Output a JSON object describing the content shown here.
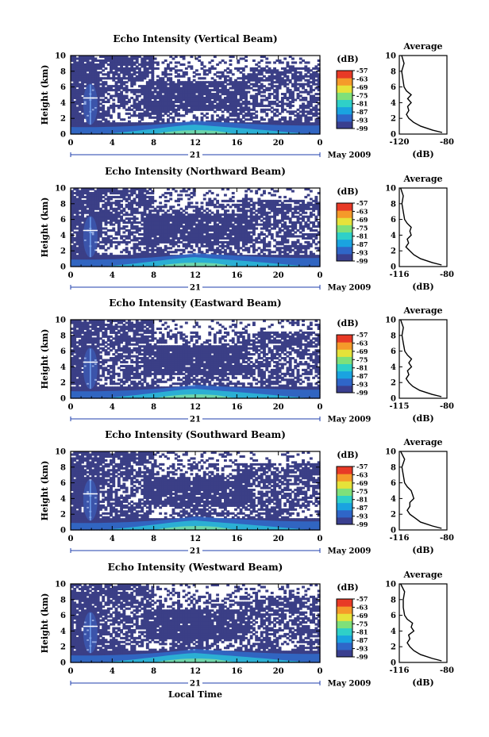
{
  "figure": {
    "shared_xlabel": "Local Time",
    "date_label": "May 2009",
    "day_label": "21",
    "colorbar_unit": "(dB)",
    "average_title": "Average",
    "average_xlabel": "(dB)"
  },
  "colorbar": {
    "ticks": [
      "-57",
      "-63",
      "-69",
      "-75",
      "-81",
      "-87",
      "-93",
      "-99"
    ],
    "colors": [
      "#3a3f8f",
      "#2f66c8",
      "#1aa3e0",
      "#2fd0c8",
      "#7fe07a",
      "#e6e23a",
      "#f59a2a",
      "#e83a26"
    ]
  },
  "chart_data": [
    {
      "type": "heatmap",
      "title": "Echo Intensity (Vertical Beam)",
      "ylabel": "Height (km)",
      "xlim": [
        0,
        24
      ],
      "ylim": [
        0,
        10
      ],
      "x_ticks": [
        "0",
        "4",
        "8",
        "12",
        "16",
        "20",
        "0"
      ],
      "y_ticks": [
        "0",
        "2",
        "4",
        "6",
        "8",
        "10"
      ],
      "colorbar_range_dB": [
        -99,
        -57
      ],
      "average_profile": {
        "type": "line",
        "xlim": [
          -120,
          -80
        ],
        "x_ticks": [
          "-120",
          "-80"
        ],
        "y_ticks": [
          "0",
          "2",
          "4",
          "6",
          "8",
          "10"
        ],
        "heights_km": [
          0.2,
          0.5,
          1.0,
          1.5,
          2.0,
          2.5,
          3.0,
          3.5,
          4.0,
          4.5,
          5.0,
          5.5,
          6.0,
          7.0,
          8.0,
          9.0,
          10.0
        ],
        "values_dB": [
          -84,
          -92,
          -102,
          -108,
          -112,
          -114,
          -112,
          -113,
          -110,
          -113,
          -110,
          -114,
          -116,
          -117,
          -118,
          -116,
          -118
        ]
      }
    },
    {
      "type": "heatmap",
      "title": "Echo Intensity (Northward Beam)",
      "ylabel": "Height (km)",
      "xlim": [
        0,
        24
      ],
      "ylim": [
        0,
        10
      ],
      "x_ticks": [
        "0",
        "4",
        "8",
        "12",
        "16",
        "20",
        "0"
      ],
      "y_ticks": [
        "0",
        "2",
        "4",
        "6",
        "8",
        "10"
      ],
      "colorbar_range_dB": [
        -99,
        -57
      ],
      "average_profile": {
        "type": "line",
        "xlim": [
          -116,
          -80
        ],
        "x_ticks": [
          "-116",
          "-80"
        ],
        "y_ticks": [
          "0",
          "2",
          "4",
          "6",
          "8",
          "10"
        ],
        "heights_km": [
          0.2,
          0.5,
          1.0,
          1.5,
          2.0,
          2.5,
          3.0,
          3.5,
          4.0,
          4.5,
          5.0,
          5.5,
          6.0,
          7.0,
          8.0,
          9.0,
          10.0
        ],
        "values_dB": [
          -84,
          -91,
          -100,
          -105,
          -108,
          -111,
          -109,
          -110,
          -107,
          -108,
          -107,
          -110,
          -112,
          -113,
          -114,
          -113,
          -115
        ]
      }
    },
    {
      "type": "heatmap",
      "title": "Echo Intensity (Eastward Beam)",
      "ylabel": "Height (km)",
      "xlim": [
        0,
        24
      ],
      "ylim": [
        0,
        10
      ],
      "x_ticks": [
        "0",
        "4",
        "8",
        "12",
        "16",
        "20",
        "0"
      ],
      "y_ticks": [
        "0",
        "2",
        "4",
        "6",
        "8",
        "10"
      ],
      "colorbar_range_dB": [
        -99,
        -57
      ],
      "average_profile": {
        "type": "line",
        "xlim": [
          -115,
          -80
        ],
        "x_ticks": [
          "-115",
          "-80"
        ],
        "y_ticks": [
          "0",
          "2",
          "4",
          "6",
          "8",
          "10"
        ],
        "heights_km": [
          0.2,
          0.5,
          1.0,
          1.5,
          2.0,
          2.5,
          3.0,
          3.5,
          4.0,
          4.5,
          5.0,
          5.5,
          6.0,
          7.0,
          8.0,
          9.0,
          10.0
        ],
        "values_dB": [
          -84,
          -91,
          -100,
          -105,
          -108,
          -110,
          -108,
          -109,
          -106,
          -108,
          -106,
          -109,
          -111,
          -112,
          -113,
          -112,
          -114
        ]
      }
    },
    {
      "type": "heatmap",
      "title": "Echo Intensity (Southward Beam)",
      "ylabel": "Height (km)",
      "xlim": [
        0,
        24
      ],
      "ylim": [
        0,
        10
      ],
      "x_ticks": [
        "0",
        "4",
        "8",
        "12",
        "16",
        "20",
        "0"
      ],
      "y_ticks": [
        "0",
        "2",
        "4",
        "6",
        "8",
        "10"
      ],
      "colorbar_range_dB": [
        -99,
        -57
      ],
      "average_profile": {
        "type": "line",
        "xlim": [
          -116,
          -80
        ],
        "x_ticks": [
          "-116",
          "-80"
        ],
        "y_ticks": [
          "0",
          "2",
          "4",
          "6",
          "8",
          "10"
        ],
        "heights_km": [
          0.2,
          0.5,
          1.0,
          1.5,
          2.0,
          2.5,
          3.0,
          3.5,
          4.0,
          4.5,
          5.0,
          5.5,
          6.0,
          7.0,
          8.0,
          9.0,
          10.0
        ],
        "values_dB": [
          -84,
          -91,
          -100,
          -104,
          -108,
          -110,
          -108,
          -108,
          -105,
          -106,
          -107,
          -110,
          -112,
          -113,
          -114,
          -112,
          -115
        ]
      }
    },
    {
      "type": "heatmap",
      "title": "Echo Intensity (Westward Beam)",
      "ylabel": "Height (km)",
      "xlim": [
        0,
        24
      ],
      "ylim": [
        0,
        10
      ],
      "x_ticks": [
        "0",
        "4",
        "8",
        "12",
        "16",
        "20",
        "0"
      ],
      "y_ticks": [
        "0",
        "2",
        "4",
        "6",
        "8",
        "10"
      ],
      "colorbar_range_dB": [
        -99,
        -57
      ],
      "average_profile": {
        "type": "line",
        "xlim": [
          -116,
          -80
        ],
        "x_ticks": [
          "-116",
          "-80"
        ],
        "y_ticks": [
          "0",
          "2",
          "4",
          "6",
          "8",
          "10"
        ],
        "heights_km": [
          0.2,
          0.5,
          1.0,
          1.5,
          2.0,
          2.5,
          3.0,
          3.5,
          4.0,
          4.5,
          5.0,
          5.5,
          6.0,
          7.0,
          8.0,
          9.0,
          10.0
        ],
        "values_dB": [
          -84,
          -91,
          -100,
          -105,
          -108,
          -110,
          -108,
          -109,
          -105,
          -107,
          -106,
          -110,
          -112,
          -113,
          -113,
          -112,
          -115
        ]
      }
    }
  ]
}
